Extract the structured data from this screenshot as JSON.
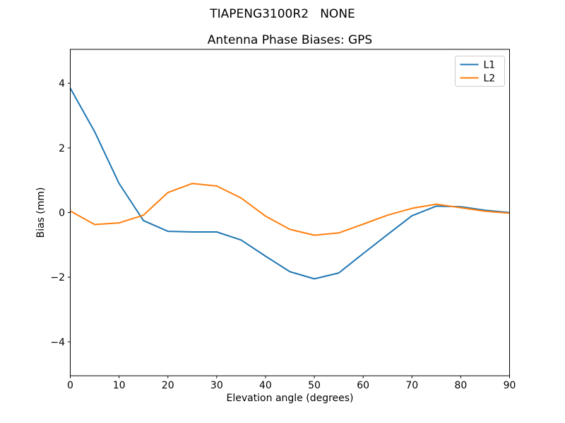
{
  "figure": {
    "suptitle": "TIAPENG3100R2   NONE",
    "background": "#ffffff",
    "spine_color": "#000000",
    "legend_border_color": "#cccccc",
    "legend_fill": "#ffffff"
  },
  "chart_data": {
    "type": "line",
    "title": "Antenna Phase Biases: GPS",
    "xlabel": "Elevation angle (degrees)",
    "ylabel": "Bias (mm)",
    "xlim": [
      0,
      90
    ],
    "ylim": [
      -5.05,
      5.05
    ],
    "grid": false,
    "legend_position": "upper right",
    "xticks": [
      0,
      10,
      20,
      30,
      40,
      50,
      60,
      70,
      80,
      90
    ],
    "xtick_labels": [
      "0",
      "10",
      "20",
      "30",
      "40",
      "50",
      "60",
      "70",
      "80",
      "90"
    ],
    "yticks": [
      -4,
      -2,
      0,
      2,
      4
    ],
    "ytick_labels": [
      "−4",
      "−2",
      "0",
      "2",
      "4"
    ],
    "x": [
      0,
      5,
      10,
      15,
      20,
      25,
      30,
      35,
      40,
      45,
      50,
      55,
      60,
      65,
      70,
      75,
      80,
      85,
      90
    ],
    "series": [
      {
        "name": "L1",
        "color": "#1f77b4",
        "values": [
          3.85,
          2.5,
          0.9,
          -0.25,
          -0.58,
          -0.6,
          -0.6,
          -0.85,
          -1.35,
          -1.83,
          -2.05,
          -1.87,
          -1.27,
          -0.68,
          -0.1,
          0.2,
          0.18,
          0.07,
          0.0
        ]
      },
      {
        "name": "L2",
        "color": "#ff7f0e",
        "values": [
          0.05,
          -0.37,
          -0.32,
          -0.08,
          0.62,
          0.9,
          0.82,
          0.45,
          -0.11,
          -0.52,
          -0.7,
          -0.63,
          -0.36,
          -0.08,
          0.13,
          0.26,
          0.15,
          0.04,
          -0.02
        ]
      }
    ]
  }
}
